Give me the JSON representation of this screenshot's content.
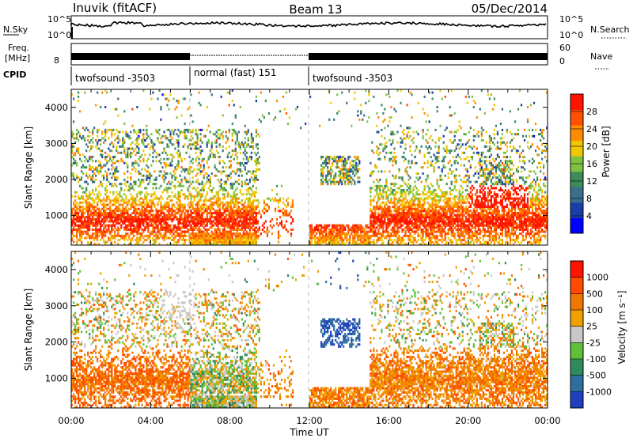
{
  "header": {
    "station": "Inuvik (fitACF)",
    "beam": "Beam 13",
    "date": "05/Dec/2014"
  },
  "noise_panel": {
    "left_label": "N.Sky",
    "right_label": "N.Search",
    "left_ticks": [
      "10^5",
      "10^0"
    ],
    "right_ticks": [
      "10^5",
      "10^0"
    ]
  },
  "freq_panel": {
    "left_label_top": "Freq.",
    "left_label_unit": "[MHz]",
    "left_tick": "8",
    "right_label": "Nave",
    "right_ticks": [
      "60",
      "0"
    ]
  },
  "cpid": {
    "label": "CPID",
    "segments": [
      {
        "name": "twofsound -3503",
        "start_hour": 0,
        "end_hour": 6
      },
      {
        "name": "normal (fast) 151",
        "start_hour": 6,
        "end_hour": 12
      },
      {
        "name": "twofsound -3503",
        "start_hour": 12,
        "end_hour": 24
      }
    ]
  },
  "colors": {
    "power_scale": [
      "#0000ff",
      "#1a3ea8",
      "#3b6e8c",
      "#3c8c5a",
      "#7fc242",
      "#f0c800",
      "#ff8c00",
      "#ff5000",
      "#ff1400"
    ],
    "velocity_scale": [
      "#2040c0",
      "#2e6fa0",
      "#2f8a5c",
      "#5ec03a",
      "#c8c8c8",
      "#f0a000",
      "#f07800",
      "#ff4a00",
      "#ff1400"
    ],
    "dashed_line": "#bbbbbb"
  },
  "chart_data": [
    {
      "type": "heatmap",
      "name": "power",
      "ylabel": "Slant Range [km]",
      "ylim": [
        180,
        4500
      ],
      "xlim": [
        0,
        24
      ],
      "yticks": [
        "1000",
        "2000",
        "3000",
        "4000"
      ],
      "colorbar": {
        "label": "Power [dB]",
        "ticks": [
          "28",
          "24",
          "20",
          "16",
          "12",
          "8",
          "4"
        ],
        "range": [
          0,
          32
        ]
      },
      "cpid_change_hours": [
        6,
        12
      ]
    },
    {
      "type": "heatmap",
      "name": "velocity",
      "ylabel": "Slant Range [km]",
      "ylim": [
        180,
        4500
      ],
      "xlim": [
        0,
        24
      ],
      "yticks": [
        "1000",
        "2000",
        "3000",
        "4000"
      ],
      "xlabel": "Time UT",
      "xticks": [
        "00:00",
        "04:00",
        "08:00",
        "12:00",
        "16:00",
        "20:00",
        "00:00"
      ],
      "colorbar": {
        "label": "Velocity [m s⁻¹]",
        "ticks": [
          "1000",
          "500",
          "100",
          "25",
          "-25",
          "-100",
          "-500",
          "-1000"
        ]
      },
      "cpid_change_hours": [
        6,
        12
      ]
    }
  ]
}
